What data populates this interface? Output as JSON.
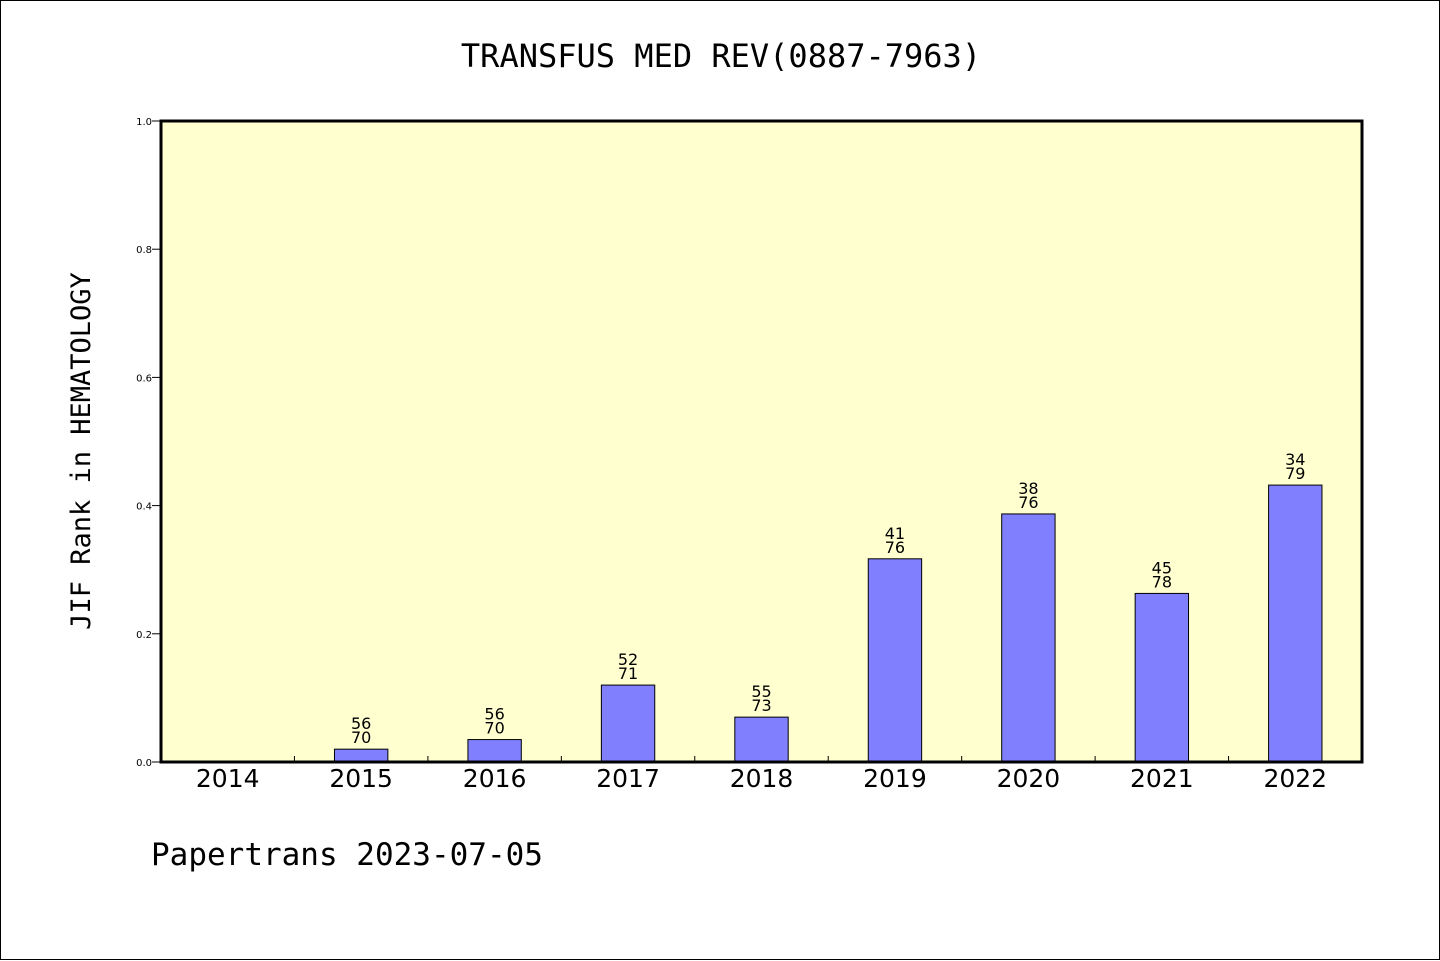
{
  "chart_data": {
    "type": "bar",
    "title": "TRANSFUS MED REV(0887-7963)",
    "ylabel": "JIF Rank in HEMATOLOGY",
    "xlabel": "",
    "ylim": [
      0,
      1.0
    ],
    "yticks": [
      "0.0",
      "0.2",
      "0.4",
      "0.6",
      "0.8",
      "1.0"
    ],
    "grid": false,
    "background_color": "#ffffd0",
    "bar_color": "#8080ff",
    "categories": [
      "2014",
      "2015",
      "2016",
      "2017",
      "2018",
      "2019",
      "2020",
      "2021",
      "2022"
    ],
    "values": [
      null,
      0.02,
      0.035,
      0.12,
      0.07,
      0.317,
      0.387,
      0.263,
      0.432
    ],
    "label_top": [
      "",
      "56",
      "56",
      "52",
      "55",
      "41",
      "38",
      "45",
      "34"
    ],
    "label_bottom": [
      "",
      "70",
      "70",
      "71",
      "73",
      "76",
      "76",
      "78",
      "79"
    ]
  },
  "footer": "Papertrans 2023-07-05"
}
